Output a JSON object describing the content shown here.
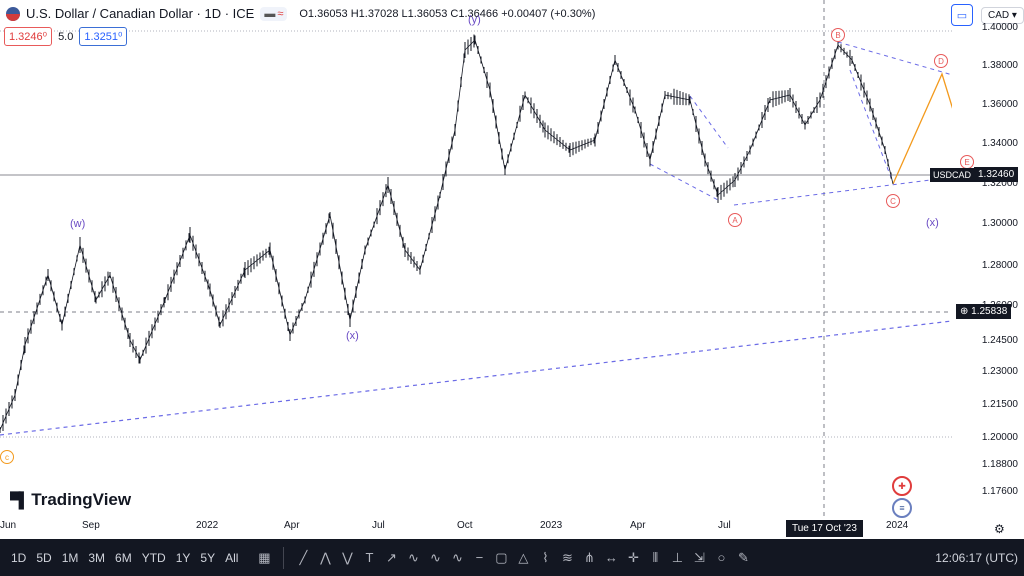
{
  "header": {
    "title": "U.S. Dollar / Canadian Dollar · 1D · ICE",
    "ohlc": "O1.36053  H1.37028  L1.36053  C1.36466  +0.00407 (+0.30%)",
    "sell_price": "1.3246⁰",
    "spread": "5.0",
    "buy_price": "1.3251⁰",
    "currency": "CAD"
  },
  "price_axis": {
    "labels": [
      "1.40000",
      "1.38000",
      "1.36000",
      "1.34000",
      "1.32000",
      "1.30000",
      "1.28000",
      "1.26000",
      "1.24500",
      "1.23000",
      "1.21500",
      "1.20000",
      "1.18800",
      "1.17600"
    ],
    "last_symbol": "USDCAD",
    "last_price": "1.32460",
    "cross_price": "1.25838"
  },
  "time_axis": {
    "labels": [
      "Jun",
      "Sep",
      "2022",
      "Apr",
      "Jul",
      "Oct",
      "2023",
      "Apr",
      "Jul",
      "Oct",
      "2024"
    ],
    "cross_date": "Tue 17 Oct '23"
  },
  "waves": {
    "w": "(w)",
    "x1": "(x)",
    "y": "(y)",
    "x2": "(x)",
    "A": "A",
    "B": "B",
    "C": "C",
    "D": "D",
    "E": "E",
    "c": "c"
  },
  "brand": "TradingView",
  "bottom": {
    "timeframes": [
      "1D",
      "5D",
      "1M",
      "3M",
      "6M",
      "YTD",
      "1Y",
      "5Y",
      "All"
    ],
    "clock": "12:06:17 (UTC)"
  },
  "colors": {
    "wave_purple": "#6a4bc4",
    "forecast_orange": "#f39a1d",
    "wave_red": "#e85a5a",
    "dashed_blue": "#6b6be6"
  }
}
